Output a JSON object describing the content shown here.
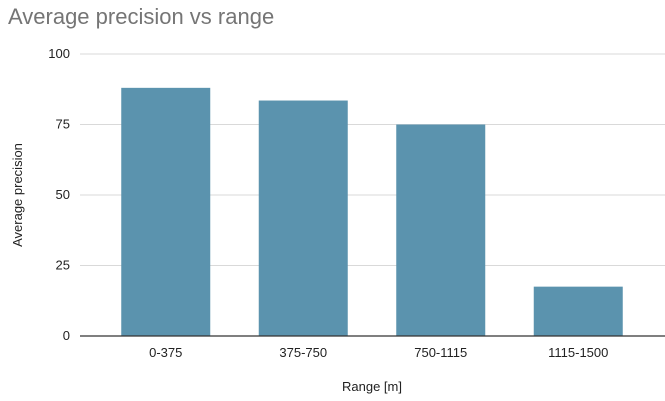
{
  "chart_data": {
    "type": "bar",
    "title": "Average precision vs range",
    "xlabel": "Range [m]",
    "ylabel": "Average precision",
    "categories": [
      "0-375",
      "375-750",
      "750-1115",
      "1115-1500"
    ],
    "values": [
      88,
      83.5,
      75,
      17.5
    ],
    "ylim": [
      0,
      100
    ],
    "yticks": [
      0,
      25,
      50,
      75,
      100
    ],
    "grid": true,
    "legend": "none",
    "bar_color": "#5b93ae",
    "grid_color": "#d9d9d9",
    "axis_color": "#333333"
  }
}
